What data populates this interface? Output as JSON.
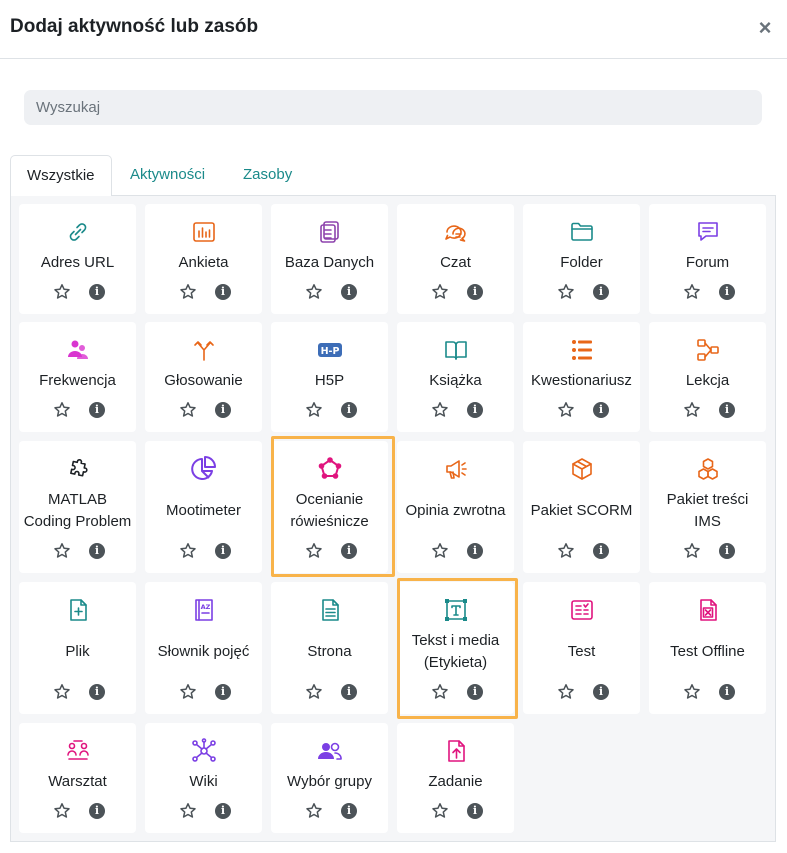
{
  "modal": {
    "title": "Dodaj aktywność lub zasób",
    "close_symbol": "×"
  },
  "search": {
    "placeholder": "Wyszukaj",
    "value": ""
  },
  "tabs": [
    {
      "label": "Wszystkie",
      "active": true
    },
    {
      "label": "Aktywności",
      "active": false
    },
    {
      "label": "Zasoby",
      "active": false
    }
  ],
  "modules": [
    {
      "name": "Adres URL",
      "icon": "link-icon",
      "color": "#1a8a8a"
    },
    {
      "name": "Ankieta",
      "icon": "bar-chart-icon",
      "color": "#e86618"
    },
    {
      "name": "Baza Danych",
      "icon": "database-icon",
      "color": "#8e44ad"
    },
    {
      "name": "Czat",
      "icon": "chat-bubbles-icon",
      "color": "#e86618"
    },
    {
      "name": "Folder",
      "icon": "folder-icon",
      "color": "#1a8a8a"
    },
    {
      "name": "Forum",
      "icon": "forum-icon",
      "color": "#7b3fe4"
    },
    {
      "name": "Frekwencja",
      "icon": "attendance-icon",
      "color": "#d935d0"
    },
    {
      "name": "Głosowanie",
      "icon": "choice-icon",
      "color": "#e86618"
    },
    {
      "name": "H5P",
      "icon": "h5p-icon",
      "color": "#3d6db7"
    },
    {
      "name": "Książka",
      "icon": "book-icon",
      "color": "#1a8a8a"
    },
    {
      "name": "Kwestionariusz",
      "icon": "questionnaire-icon",
      "color": "#e86618"
    },
    {
      "name": "Lekcja",
      "icon": "lesson-icon",
      "color": "#e86618"
    },
    {
      "name": "MATLAB Coding Problem",
      "icon": "puzzle-icon",
      "color": "#1d2125"
    },
    {
      "name": "Mootimeter",
      "icon": "pie-chart-icon",
      "color": "#7b3fe4"
    },
    {
      "name": "Ocenianie rówieśnicze",
      "icon": "peer-review-icon",
      "color": "#e0147e"
    },
    {
      "name": "Opinia zwrotna",
      "icon": "megaphone-icon",
      "color": "#e86618"
    },
    {
      "name": "Pakiet SCORM",
      "icon": "package-icon",
      "color": "#e86618"
    },
    {
      "name": "Pakiet treści IMS",
      "icon": "boxes-icon",
      "color": "#e86618"
    },
    {
      "name": "Plik",
      "icon": "file-plus-icon",
      "color": "#1a8a8a"
    },
    {
      "name": "Słownik pojęć",
      "icon": "glossary-icon",
      "color": "#7b3fe4"
    },
    {
      "name": "Strona",
      "icon": "page-icon",
      "color": "#1a8a8a"
    },
    {
      "name": "Tekst i media (Etykieta)",
      "icon": "text-media-icon",
      "color": "#1a8a8a"
    },
    {
      "name": "Test",
      "icon": "quiz-icon",
      "color": "#e0147e"
    },
    {
      "name": "Test Offline",
      "icon": "offline-quiz-icon",
      "color": "#e0147e"
    },
    {
      "name": "Warsztat",
      "icon": "workshop-icon",
      "color": "#e0147e"
    },
    {
      "name": "Wiki",
      "icon": "wiki-icon",
      "color": "#7b3fe4"
    },
    {
      "name": "Wybór grupy",
      "icon": "group-choice-icon",
      "color": "#7b3fe4"
    },
    {
      "name": "Zadanie",
      "icon": "assignment-icon",
      "color": "#e0147e"
    }
  ],
  "actions": {
    "star_icon": "star-icon",
    "info_glyph": "i"
  },
  "highlight_color": "#f8b34a"
}
